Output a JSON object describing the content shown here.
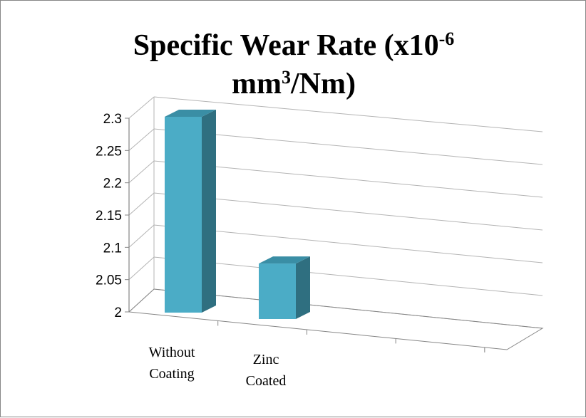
{
  "chart_data": {
    "type": "bar",
    "style": "3d-column",
    "title": {
      "line1_main": "Specific Wear Rate (x10",
      "line1_sup": "-6",
      "line2_main": "mm",
      "line2_sup": "3",
      "line2_rest": "/Nm)"
    },
    "categories": [
      [
        "Without",
        "Coating"
      ],
      [
        "Zinc",
        "Coated"
      ]
    ],
    "values": [
      2.3,
      2.085
    ],
    "ylim": [
      2,
      2.3
    ],
    "yticks": [
      "2",
      "2.05",
      "2.1",
      "2.15",
      "2.2",
      "2.25",
      "2.3"
    ],
    "grid": true,
    "legend": "none",
    "colors": {
      "bar_front": "#4bacc6",
      "bar_side": "#2f6f80",
      "bar_top": "#3a8ea5",
      "grid": "#b4b4b4",
      "axis": "#868686"
    }
  }
}
